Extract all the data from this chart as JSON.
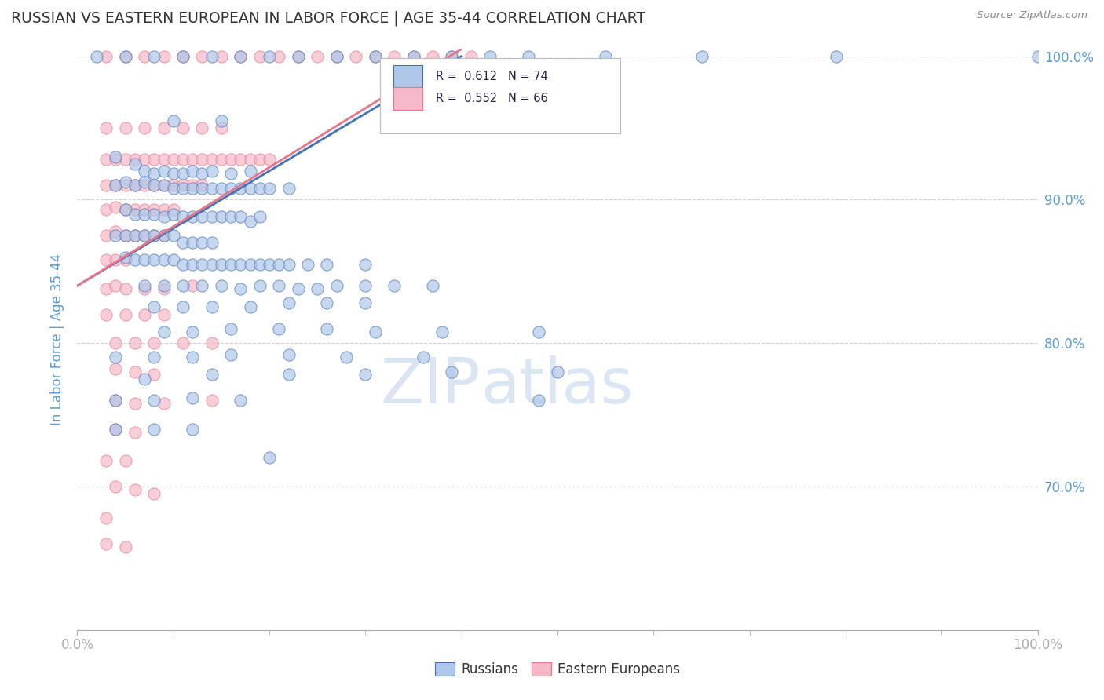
{
  "title": "RUSSIAN VS EASTERN EUROPEAN IN LABOR FORCE | AGE 35-44 CORRELATION CHART",
  "source": "Source: ZipAtlas.com",
  "ylabel": "In Labor Force | Age 35-44",
  "xlim": [
    0.0,
    1.0
  ],
  "ylim": [
    0.6,
    1.005
  ],
  "ytick_values": [
    0.7,
    0.8,
    0.9,
    1.0
  ],
  "ytick_labels": [
    "70.0%",
    "80.0%",
    "90.0%",
    "100.0%"
  ],
  "xtick_values": [
    0.0,
    1.0
  ],
  "xtick_labels": [
    "0.0%",
    "100.0%"
  ],
  "legend_blue_r": "R =  0.612",
  "legend_blue_n": "N = 74",
  "legend_pink_r": "R =  0.552",
  "legend_pink_n": "N = 66",
  "legend_label_blue": "Russians",
  "legend_label_pink": "Eastern Europeans",
  "blue_color": "#aec6e8",
  "pink_color": "#f4b8c8",
  "line_blue": "#4473b5",
  "line_pink": "#e8758a",
  "axis_color": "#5b9bd5",
  "grid_color": "#d0d0d0",
  "watermark_color": "#dce8f5",
  "blue_scatter": [
    [
      0.02,
      1.0
    ],
    [
      0.05,
      1.0
    ],
    [
      0.08,
      1.0
    ],
    [
      0.11,
      1.0
    ],
    [
      0.14,
      1.0
    ],
    [
      0.17,
      1.0
    ],
    [
      0.2,
      1.0
    ],
    [
      0.23,
      1.0
    ],
    [
      0.27,
      1.0
    ],
    [
      0.31,
      1.0
    ],
    [
      0.35,
      1.0
    ],
    [
      0.39,
      1.0
    ],
    [
      0.43,
      1.0
    ],
    [
      0.47,
      1.0
    ],
    [
      0.55,
      1.0
    ],
    [
      0.65,
      1.0
    ],
    [
      0.79,
      1.0
    ],
    [
      1.0,
      1.0
    ],
    [
      0.1,
      0.955
    ],
    [
      0.15,
      0.955
    ],
    [
      0.04,
      0.93
    ],
    [
      0.06,
      0.925
    ],
    [
      0.07,
      0.92
    ],
    [
      0.08,
      0.918
    ],
    [
      0.09,
      0.92
    ],
    [
      0.1,
      0.918
    ],
    [
      0.11,
      0.918
    ],
    [
      0.12,
      0.92
    ],
    [
      0.13,
      0.918
    ],
    [
      0.14,
      0.92
    ],
    [
      0.16,
      0.918
    ],
    [
      0.18,
      0.92
    ],
    [
      0.04,
      0.91
    ],
    [
      0.05,
      0.912
    ],
    [
      0.06,
      0.91
    ],
    [
      0.07,
      0.912
    ],
    [
      0.08,
      0.91
    ],
    [
      0.09,
      0.91
    ],
    [
      0.1,
      0.908
    ],
    [
      0.11,
      0.908
    ],
    [
      0.12,
      0.908
    ],
    [
      0.13,
      0.908
    ],
    [
      0.14,
      0.908
    ],
    [
      0.15,
      0.908
    ],
    [
      0.16,
      0.908
    ],
    [
      0.17,
      0.908
    ],
    [
      0.18,
      0.908
    ],
    [
      0.19,
      0.908
    ],
    [
      0.2,
      0.908
    ],
    [
      0.22,
      0.908
    ],
    [
      0.05,
      0.893
    ],
    [
      0.06,
      0.89
    ],
    [
      0.07,
      0.89
    ],
    [
      0.08,
      0.89
    ],
    [
      0.09,
      0.888
    ],
    [
      0.1,
      0.89
    ],
    [
      0.11,
      0.888
    ],
    [
      0.12,
      0.888
    ],
    [
      0.13,
      0.888
    ],
    [
      0.14,
      0.888
    ],
    [
      0.15,
      0.888
    ],
    [
      0.16,
      0.888
    ],
    [
      0.17,
      0.888
    ],
    [
      0.18,
      0.885
    ],
    [
      0.19,
      0.888
    ],
    [
      0.04,
      0.875
    ],
    [
      0.05,
      0.875
    ],
    [
      0.06,
      0.875
    ],
    [
      0.07,
      0.875
    ],
    [
      0.08,
      0.875
    ],
    [
      0.09,
      0.875
    ],
    [
      0.1,
      0.875
    ],
    [
      0.11,
      0.87
    ],
    [
      0.12,
      0.87
    ],
    [
      0.13,
      0.87
    ],
    [
      0.14,
      0.87
    ],
    [
      0.05,
      0.86
    ],
    [
      0.06,
      0.858
    ],
    [
      0.07,
      0.858
    ],
    [
      0.08,
      0.858
    ],
    [
      0.09,
      0.858
    ],
    [
      0.1,
      0.858
    ],
    [
      0.11,
      0.855
    ],
    [
      0.12,
      0.855
    ],
    [
      0.13,
      0.855
    ],
    [
      0.14,
      0.855
    ],
    [
      0.15,
      0.855
    ],
    [
      0.16,
      0.855
    ],
    [
      0.17,
      0.855
    ],
    [
      0.18,
      0.855
    ],
    [
      0.19,
      0.855
    ],
    [
      0.2,
      0.855
    ],
    [
      0.21,
      0.855
    ],
    [
      0.22,
      0.855
    ],
    [
      0.24,
      0.855
    ],
    [
      0.26,
      0.855
    ],
    [
      0.3,
      0.855
    ],
    [
      0.07,
      0.84
    ],
    [
      0.09,
      0.84
    ],
    [
      0.11,
      0.84
    ],
    [
      0.13,
      0.84
    ],
    [
      0.15,
      0.84
    ],
    [
      0.17,
      0.838
    ],
    [
      0.19,
      0.84
    ],
    [
      0.21,
      0.84
    ],
    [
      0.23,
      0.838
    ],
    [
      0.25,
      0.838
    ],
    [
      0.27,
      0.84
    ],
    [
      0.3,
      0.84
    ],
    [
      0.33,
      0.84
    ],
    [
      0.37,
      0.84
    ],
    [
      0.08,
      0.825
    ],
    [
      0.11,
      0.825
    ],
    [
      0.14,
      0.825
    ],
    [
      0.18,
      0.825
    ],
    [
      0.22,
      0.828
    ],
    [
      0.26,
      0.828
    ],
    [
      0.3,
      0.828
    ],
    [
      0.09,
      0.808
    ],
    [
      0.12,
      0.808
    ],
    [
      0.16,
      0.81
    ],
    [
      0.21,
      0.81
    ],
    [
      0.26,
      0.81
    ],
    [
      0.31,
      0.808
    ],
    [
      0.38,
      0.808
    ],
    [
      0.48,
      0.808
    ],
    [
      0.04,
      0.79
    ],
    [
      0.08,
      0.79
    ],
    [
      0.12,
      0.79
    ],
    [
      0.16,
      0.792
    ],
    [
      0.22,
      0.792
    ],
    [
      0.28,
      0.79
    ],
    [
      0.36,
      0.79
    ],
    [
      0.07,
      0.775
    ],
    [
      0.14,
      0.778
    ],
    [
      0.22,
      0.778
    ],
    [
      0.3,
      0.778
    ],
    [
      0.39,
      0.78
    ],
    [
      0.5,
      0.78
    ],
    [
      0.04,
      0.76
    ],
    [
      0.08,
      0.76
    ],
    [
      0.12,
      0.762
    ],
    [
      0.17,
      0.76
    ],
    [
      0.48,
      0.76
    ],
    [
      0.04,
      0.74
    ],
    [
      0.08,
      0.74
    ],
    [
      0.12,
      0.74
    ],
    [
      0.2,
      0.72
    ]
  ],
  "pink_scatter": [
    [
      0.03,
      1.0
    ],
    [
      0.05,
      1.0
    ],
    [
      0.07,
      1.0
    ],
    [
      0.09,
      1.0
    ],
    [
      0.11,
      1.0
    ],
    [
      0.13,
      1.0
    ],
    [
      0.15,
      1.0
    ],
    [
      0.17,
      1.0
    ],
    [
      0.19,
      1.0
    ],
    [
      0.21,
      1.0
    ],
    [
      0.23,
      1.0
    ],
    [
      0.25,
      1.0
    ],
    [
      0.27,
      1.0
    ],
    [
      0.29,
      1.0
    ],
    [
      0.31,
      1.0
    ],
    [
      0.33,
      1.0
    ],
    [
      0.35,
      1.0
    ],
    [
      0.37,
      1.0
    ],
    [
      0.39,
      1.0
    ],
    [
      0.41,
      1.0
    ],
    [
      0.03,
      0.95
    ],
    [
      0.05,
      0.95
    ],
    [
      0.07,
      0.95
    ],
    [
      0.09,
      0.95
    ],
    [
      0.11,
      0.95
    ],
    [
      0.13,
      0.95
    ],
    [
      0.15,
      0.95
    ],
    [
      0.03,
      0.928
    ],
    [
      0.04,
      0.928
    ],
    [
      0.05,
      0.928
    ],
    [
      0.06,
      0.928
    ],
    [
      0.07,
      0.928
    ],
    [
      0.08,
      0.928
    ],
    [
      0.09,
      0.928
    ],
    [
      0.1,
      0.928
    ],
    [
      0.11,
      0.928
    ],
    [
      0.12,
      0.928
    ],
    [
      0.13,
      0.928
    ],
    [
      0.14,
      0.928
    ],
    [
      0.15,
      0.928
    ],
    [
      0.16,
      0.928
    ],
    [
      0.17,
      0.928
    ],
    [
      0.18,
      0.928
    ],
    [
      0.19,
      0.928
    ],
    [
      0.2,
      0.928
    ],
    [
      0.03,
      0.91
    ],
    [
      0.04,
      0.91
    ],
    [
      0.05,
      0.91
    ],
    [
      0.06,
      0.91
    ],
    [
      0.07,
      0.91
    ],
    [
      0.08,
      0.91
    ],
    [
      0.09,
      0.91
    ],
    [
      0.1,
      0.91
    ],
    [
      0.11,
      0.91
    ],
    [
      0.12,
      0.91
    ],
    [
      0.13,
      0.91
    ],
    [
      0.03,
      0.893
    ],
    [
      0.04,
      0.895
    ],
    [
      0.05,
      0.893
    ],
    [
      0.06,
      0.893
    ],
    [
      0.07,
      0.893
    ],
    [
      0.08,
      0.893
    ],
    [
      0.09,
      0.893
    ],
    [
      0.1,
      0.893
    ],
    [
      0.03,
      0.875
    ],
    [
      0.04,
      0.878
    ],
    [
      0.05,
      0.875
    ],
    [
      0.06,
      0.875
    ],
    [
      0.07,
      0.875
    ],
    [
      0.08,
      0.875
    ],
    [
      0.09,
      0.875
    ],
    [
      0.03,
      0.858
    ],
    [
      0.04,
      0.858
    ],
    [
      0.05,
      0.858
    ],
    [
      0.03,
      0.838
    ],
    [
      0.04,
      0.84
    ],
    [
      0.05,
      0.838
    ],
    [
      0.07,
      0.838
    ],
    [
      0.09,
      0.838
    ],
    [
      0.12,
      0.84
    ],
    [
      0.03,
      0.82
    ],
    [
      0.05,
      0.82
    ],
    [
      0.07,
      0.82
    ],
    [
      0.09,
      0.82
    ],
    [
      0.04,
      0.8
    ],
    [
      0.06,
      0.8
    ],
    [
      0.08,
      0.8
    ],
    [
      0.11,
      0.8
    ],
    [
      0.14,
      0.8
    ],
    [
      0.04,
      0.782
    ],
    [
      0.06,
      0.78
    ],
    [
      0.08,
      0.778
    ],
    [
      0.04,
      0.76
    ],
    [
      0.06,
      0.758
    ],
    [
      0.09,
      0.758
    ],
    [
      0.14,
      0.76
    ],
    [
      0.04,
      0.74
    ],
    [
      0.06,
      0.738
    ],
    [
      0.03,
      0.718
    ],
    [
      0.05,
      0.718
    ],
    [
      0.04,
      0.7
    ],
    [
      0.06,
      0.698
    ],
    [
      0.08,
      0.695
    ],
    [
      0.03,
      0.678
    ],
    [
      0.03,
      0.66
    ],
    [
      0.05,
      0.658
    ]
  ],
  "blue_line": [
    [
      0.0,
      0.84
    ],
    [
      0.4,
      1.0
    ]
  ],
  "pink_line": [
    [
      0.0,
      0.84
    ],
    [
      0.4,
      1.005
    ]
  ]
}
